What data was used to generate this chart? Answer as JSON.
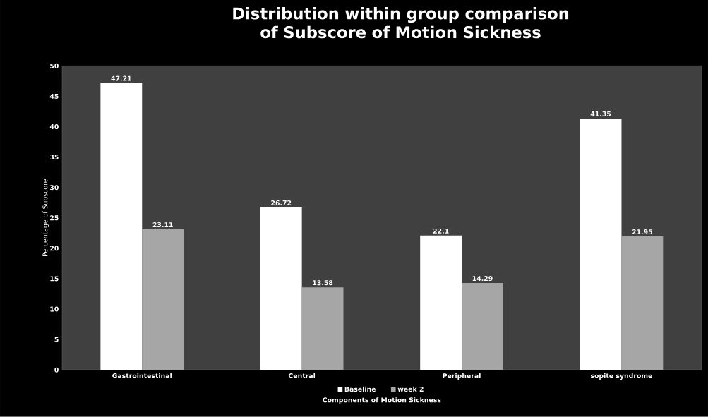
{
  "chart_data": {
    "type": "bar",
    "title": "Distribution within group comparison of Subscore of Motion Sickness",
    "xlabel": "Components of Motion Sickness",
    "ylabel": "Percentage of Subscore",
    "categories": [
      "Gastrointestinal",
      "Central",
      "Peripheral",
      "sopite syndrome"
    ],
    "series": [
      {
        "name": "Baseline",
        "color": "#ffffff",
        "values": [
          47.21,
          26.72,
          22.1,
          41.35
        ]
      },
      {
        "name": "week 2",
        "color": "#a6a6a6",
        "values": [
          23.11,
          13.58,
          14.29,
          21.95
        ]
      }
    ],
    "ylim": [
      0,
      50
    ],
    "yticks": [
      0,
      5,
      10,
      15,
      20,
      25,
      30,
      35,
      40,
      45,
      50
    ],
    "data_labels": true,
    "legend": "bottom",
    "grid": false
  }
}
